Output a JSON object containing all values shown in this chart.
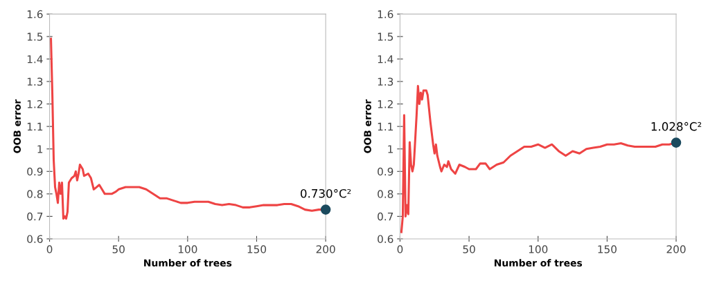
{
  "chart_data": [
    {
      "type": "line",
      "xlabel": "Number of trees",
      "ylabel": "OOB error",
      "xlim": [
        0,
        200
      ],
      "xticks": [
        0,
        50,
        100,
        150,
        200
      ],
      "ylim": [
        0.6,
        1.6
      ],
      "yticks": [
        0.6,
        0.7,
        0.8,
        0.9,
        1,
        1.1,
        1.2,
        1.3,
        1.4,
        1.5,
        1.6
      ],
      "grid": false,
      "marker": "none",
      "line_style": "solid",
      "series": [
        {
          "color": "#ee4444",
          "x": [
            1,
            2,
            3,
            4,
            5,
            6,
            7,
            8,
            9,
            10,
            11,
            12,
            13,
            14,
            16,
            18,
            19,
            20,
            21,
            22,
            24,
            25,
            28,
            30,
            32,
            34,
            36,
            38,
            40,
            45,
            48,
            50,
            55,
            60,
            65,
            70,
            75,
            80,
            85,
            90,
            95,
            100,
            105,
            110,
            115,
            120,
            125,
            130,
            135,
            140,
            145,
            150,
            155,
            160,
            165,
            170,
            175,
            180,
            185,
            190,
            195,
            200
          ],
          "values": [
            1.49,
            1.25,
            0.95,
            0.83,
            0.8,
            0.76,
            0.85,
            0.8,
            0.85,
            0.69,
            0.7,
            0.69,
            0.72,
            0.85,
            0.87,
            0.88,
            0.9,
            0.86,
            0.89,
            0.93,
            0.91,
            0.88,
            0.89,
            0.87,
            0.82,
            0.83,
            0.84,
            0.82,
            0.8,
            0.8,
            0.81,
            0.82,
            0.83,
            0.83,
            0.83,
            0.82,
            0.8,
            0.78,
            0.78,
            0.77,
            0.76,
            0.76,
            0.765,
            0.765,
            0.765,
            0.755,
            0.75,
            0.755,
            0.75,
            0.74,
            0.74,
            0.745,
            0.75,
            0.75,
            0.75,
            0.755,
            0.755,
            0.745,
            0.73,
            0.725,
            0.73,
            0.73
          ]
        },
        {
          "type": "scatter",
          "color": "#1b4a5e",
          "marker": "circle",
          "x": [
            200
          ],
          "values": [
            0.73
          ]
        }
      ],
      "annotations": [
        {
          "text": "0.730°C²",
          "x": 200,
          "y": 0.73
        }
      ]
    },
    {
      "type": "line",
      "xlabel": "Number of trees",
      "ylabel": "OOB error",
      "xlim": [
        0,
        200
      ],
      "xticks": [
        0,
        50,
        100,
        150,
        200
      ],
      "ylim": [
        0.6,
        1.6
      ],
      "yticks": [
        0.6,
        0.7,
        0.8,
        0.9,
        1,
        1.1,
        1.2,
        1.3,
        1.4,
        1.5,
        1.6
      ],
      "grid": false,
      "marker": "none",
      "line_style": "solid",
      "series": [
        {
          "color": "#ee4444",
          "x": [
            1,
            2,
            3,
            4,
            5,
            6,
            7,
            8,
            9,
            10,
            12,
            13,
            14,
            15,
            16,
            17,
            19,
            20,
            22,
            24,
            25,
            26,
            27,
            29,
            30,
            32,
            34,
            35,
            37,
            40,
            43,
            47,
            50,
            55,
            58,
            62,
            65,
            70,
            75,
            80,
            85,
            90,
            95,
            100,
            105,
            110,
            115,
            120,
            125,
            130,
            135,
            140,
            145,
            150,
            155,
            160,
            165,
            170,
            175,
            180,
            185,
            190,
            195,
            200
          ],
          "values": [
            0.63,
            0.7,
            1.15,
            0.7,
            0.75,
            0.71,
            1.03,
            0.93,
            0.9,
            0.93,
            1.15,
            1.28,
            1.2,
            1.25,
            1.22,
            1.26,
            1.26,
            1.24,
            1.12,
            1.02,
            0.98,
            1.02,
            0.97,
            0.92,
            0.9,
            0.93,
            0.92,
            0.945,
            0.91,
            0.89,
            0.93,
            0.92,
            0.91,
            0.91,
            0.935,
            0.935,
            0.91,
            0.93,
            0.94,
            0.97,
            0.99,
            1.01,
            1.01,
            1.02,
            1.005,
            1.02,
            0.99,
            0.97,
            0.99,
            0.98,
            1.0,
            1.005,
            1.01,
            1.02,
            1.02,
            1.025,
            1.015,
            1.01,
            1.01,
            1.01,
            1.01,
            1.02,
            1.02,
            1.028
          ]
        },
        {
          "type": "scatter",
          "color": "#1b4a5e",
          "marker": "circle",
          "x": [
            200
          ],
          "values": [
            1.028
          ]
        }
      ],
      "annotations": [
        {
          "text": "1.028°C²",
          "x": 200,
          "y": 1.028
        }
      ]
    }
  ]
}
